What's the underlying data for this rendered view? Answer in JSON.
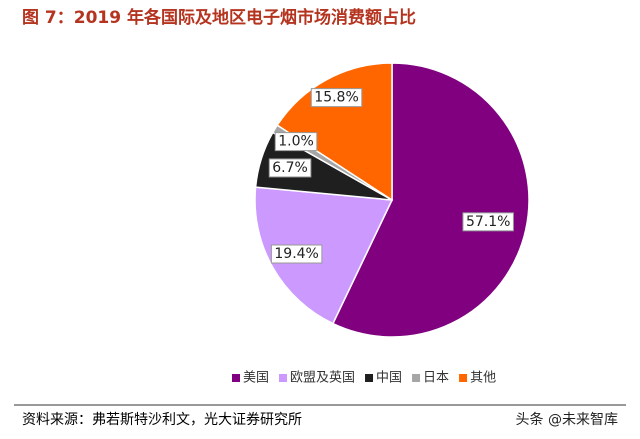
{
  "chart_data": {
    "type": "pie",
    "title": "图 7：2019 年各国际及地区电子烟市场消费额占比",
    "categories": [
      "美国",
      "欧盟及英国",
      "中国",
      "日本",
      "其他"
    ],
    "values": [
      57.1,
      19.4,
      6.7,
      1.0,
      15.8
    ],
    "value_labels": [
      "57.1%",
      "19.4%",
      "6.7%",
      "1.0%",
      "15.8%"
    ],
    "colors": [
      "#800080",
      "#cc99ff",
      "#1f1f1f",
      "#a6a6a6",
      "#ff6600"
    ],
    "legend": "bottom",
    "source": "资料来源：弗若斯特沙利文，光大证券研究所",
    "watermark": "头条 @未来智库"
  }
}
